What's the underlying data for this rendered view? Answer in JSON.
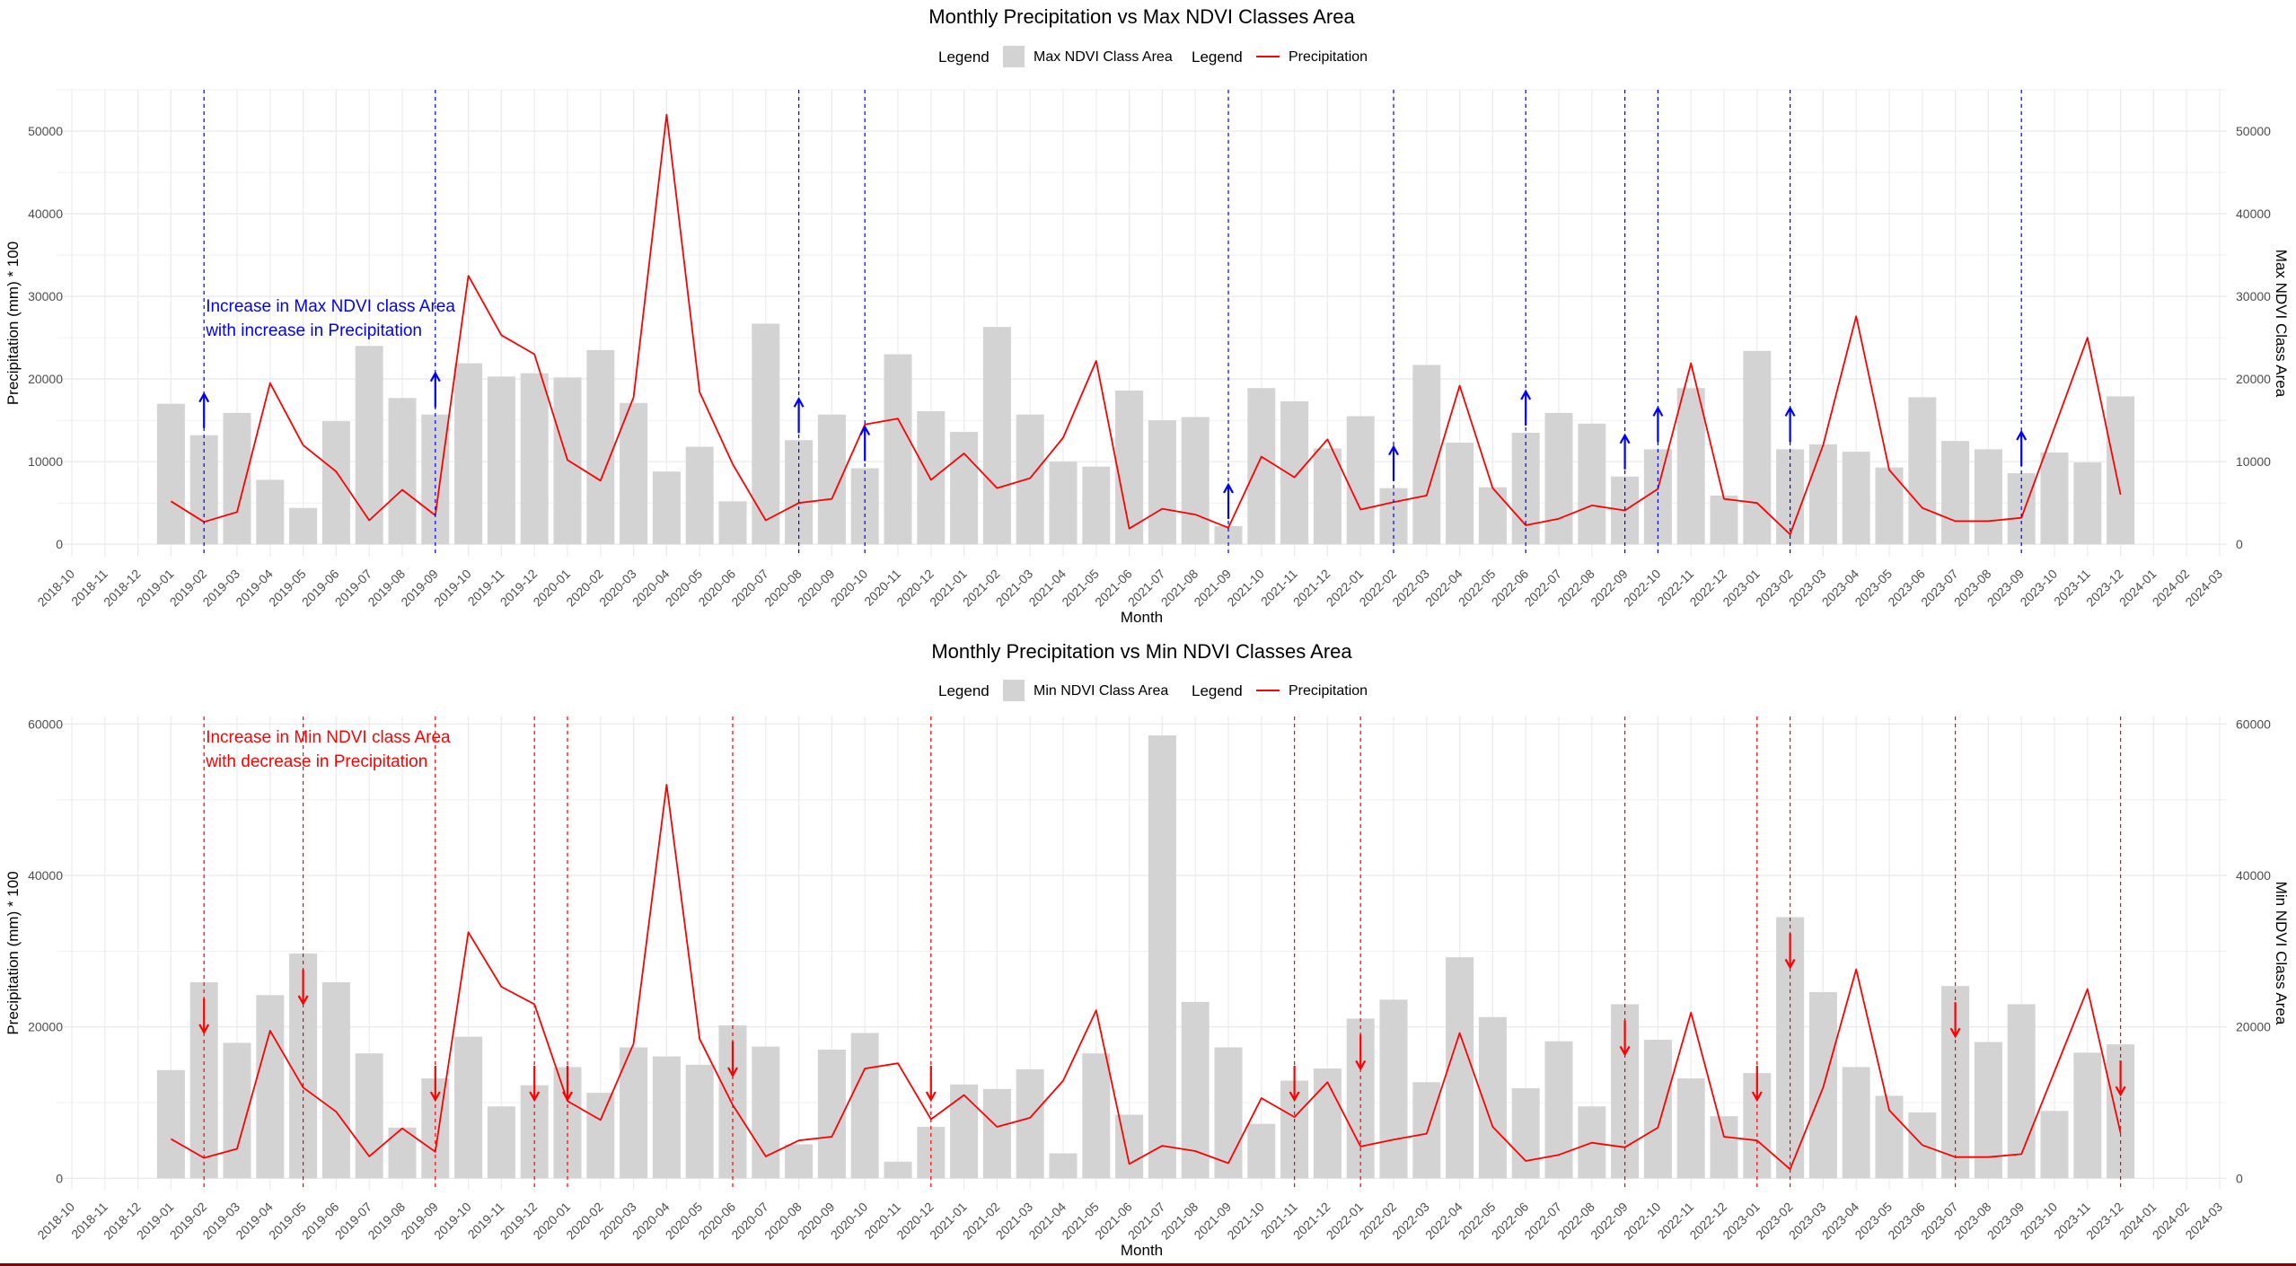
{
  "months": [
    "2018-10",
    "2018-11",
    "2018-12",
    "2019-01",
    "2019-02",
    "2019-03",
    "2019-04",
    "2019-05",
    "2019-06",
    "2019-07",
    "2019-08",
    "2019-09",
    "2019-10",
    "2019-11",
    "2019-12",
    "2020-01",
    "2020-02",
    "2020-03",
    "2020-04",
    "2020-05",
    "2020-06",
    "2020-07",
    "2020-08",
    "2020-09",
    "2020-10",
    "2020-11",
    "2020-12",
    "2021-01",
    "2021-02",
    "2021-03",
    "2021-04",
    "2021-05",
    "2021-06",
    "2021-07",
    "2021-08",
    "2021-09",
    "2021-10",
    "2021-11",
    "2021-12",
    "2022-01",
    "2022-02",
    "2022-03",
    "2022-04",
    "2022-05",
    "2022-06",
    "2022-07",
    "2022-08",
    "2022-09",
    "2022-10",
    "2022-11",
    "2022-12",
    "2023-01",
    "2023-02",
    "2023-03",
    "2023-04",
    "2023-05",
    "2023-06",
    "2023-07",
    "2023-08",
    "2023-09",
    "2023-10",
    "2023-11",
    "2023-12",
    "2024-01",
    "2024-02",
    "2024-03"
  ],
  "colors": {
    "bar": "#d3d3d3",
    "line": "#ff0000",
    "increase": "#0000ff",
    "decrease": "#ff0000",
    "grid": "#ebebeb"
  },
  "chart_data": [
    {
      "type": "bar+line",
      "title": "Monthly Precipitation vs Max NDVI Classes Area",
      "legend_title": "Legend",
      "bar_legend": "Max NDVI Class Area",
      "line_legend": "Precipitation",
      "xlabel": "Month",
      "ylabel_left": "Precipitation (mm) * 100",
      "ylabel_right": "Max NDVI Class Area",
      "ylim": [
        -1500,
        55000
      ],
      "yticks": [
        0,
        10000,
        20000,
        30000,
        40000,
        50000
      ],
      "ytick_labels": [
        "0",
        "10000",
        "20000",
        "30000",
        "40000",
        "50000"
      ],
      "bar_categories": [
        "2019-01",
        "2019-02",
        "2019-03",
        "2019-04",
        "2019-05",
        "2019-06",
        "2019-07",
        "2019-08",
        "2019-09",
        "2019-10",
        "2019-11",
        "2019-12",
        "2020-01",
        "2020-02",
        "2020-03",
        "2020-04",
        "2020-05",
        "2020-06",
        "2020-07",
        "2020-08",
        "2020-09",
        "2020-10",
        "2020-11",
        "2020-12",
        "2021-01",
        "2021-02",
        "2021-03",
        "2021-04",
        "2021-05",
        "2021-06",
        "2021-07",
        "2021-08",
        "2021-09",
        "2021-10",
        "2021-11",
        "2021-12",
        "2022-01",
        "2022-02",
        "2022-03",
        "2022-04",
        "2022-05",
        "2022-06",
        "2022-07",
        "2022-08",
        "2022-09",
        "2022-10",
        "2022-11",
        "2022-12",
        "2023-01",
        "2023-02",
        "2023-03",
        "2023-04",
        "2023-05",
        "2023-06",
        "2023-07",
        "2023-08",
        "2023-09",
        "2023-10",
        "2023-11",
        "2023-12"
      ],
      "bar_values": [
        17000,
        13200,
        15900,
        7800,
        4400,
        14900,
        24000,
        17700,
        15700,
        21900,
        20300,
        20700,
        20200,
        23500,
        17100,
        8800,
        11800,
        5200,
        26700,
        12600,
        15700,
        9200,
        23000,
        16100,
        13600,
        26300,
        15700,
        10000,
        9400,
        18600,
        15000,
        15400,
        2200,
        18900,
        17300,
        11600,
        15500,
        6800,
        21700,
        12300,
        6900,
        13500,
        15900,
        14600,
        8200,
        11500,
        18900,
        5900,
        23400,
        11500,
        12100,
        11200,
        9300,
        17800,
        12500,
        11500,
        8600,
        11100,
        9900,
        17900
      ],
      "line_values": [
        5200,
        2700,
        3900,
        19500,
        12000,
        8800,
        2900,
        6600,
        3500,
        32500,
        25300,
        23000,
        10200,
        7700,
        17800,
        52000,
        18400,
        9700,
        2900,
        5000,
        5500,
        14500,
        15200,
        7800,
        11000,
        6800,
        8000,
        12900,
        22200,
        1900,
        4300,
        3600,
        2000,
        10600,
        8100,
        12700,
        4200,
        5100,
        5900,
        19200,
        6800,
        2300,
        3100,
        4700,
        4100,
        6700,
        21900,
        5500,
        5000,
        1200,
        12000,
        27600,
        9000,
        4400,
        2800,
        2800,
        3200,
        14100,
        25000,
        6000
      ],
      "event_months": [
        "2019-02",
        "2019-09",
        "2020-08",
        "2020-10",
        "2021-09",
        "2022-02",
        "2022-06",
        "2022-09",
        "2022-10",
        "2023-02",
        "2023-09"
      ],
      "annotation": [
        "Increase in Max NDVI class Area",
        "with increase in Precipitation"
      ],
      "arrow_direction": "up"
    },
    {
      "type": "bar+line",
      "title": "Monthly Precipitation vs Min NDVI Classes Area",
      "legend_title": "Legend",
      "bar_legend": "Min NDVI Class Area",
      "line_legend": "Precipitation",
      "xlabel": "Month",
      "ylabel_left": "Precipitation (mm) * 100",
      "ylabel_right": "Min NDVI Class Area",
      "ylim": [
        -1500,
        61000
      ],
      "yticks": [
        0,
        20000,
        40000,
        60000
      ],
      "ytick_labels": [
        "0",
        "20000",
        "40000",
        "60000"
      ],
      "bar_categories": [
        "2019-01",
        "2019-02",
        "2019-03",
        "2019-04",
        "2019-05",
        "2019-06",
        "2019-07",
        "2019-08",
        "2019-09",
        "2019-10",
        "2019-11",
        "2019-12",
        "2020-01",
        "2020-02",
        "2020-03",
        "2020-04",
        "2020-05",
        "2020-06",
        "2020-07",
        "2020-08",
        "2020-09",
        "2020-10",
        "2020-11",
        "2020-12",
        "2021-01",
        "2021-02",
        "2021-03",
        "2021-04",
        "2021-05",
        "2021-06",
        "2021-07",
        "2021-08",
        "2021-09",
        "2021-10",
        "2021-11",
        "2021-12",
        "2022-01",
        "2022-02",
        "2022-03",
        "2022-04",
        "2022-05",
        "2022-06",
        "2022-07",
        "2022-08",
        "2022-09",
        "2022-10",
        "2022-11",
        "2022-12",
        "2023-01",
        "2023-02",
        "2023-03",
        "2023-04",
        "2023-05",
        "2023-06",
        "2023-07",
        "2023-08",
        "2023-09",
        "2023-10",
        "2023-11",
        "2023-12"
      ],
      "bar_values": [
        14300,
        25900,
        17900,
        24200,
        29700,
        25900,
        16500,
        6700,
        13200,
        18700,
        9500,
        12300,
        14700,
        11300,
        17300,
        16100,
        15000,
        20200,
        17400,
        4500,
        17000,
        19200,
        2200,
        6800,
        12400,
        11800,
        14400,
        3300,
        16500,
        8400,
        58500,
        23300,
        17300,
        7200,
        12900,
        14500,
        21100,
        23600,
        12700,
        29200,
        21300,
        11900,
        18100,
        9500,
        23000,
        18300,
        13200,
        8200,
        13900,
        34500,
        24600,
        14700,
        10900,
        8700,
        25400,
        18000,
        23000,
        8900,
        16600,
        17700
      ],
      "line_values": [
        5200,
        2700,
        3900,
        19500,
        12000,
        8800,
        2900,
        6600,
        3500,
        32500,
        25300,
        23000,
        10200,
        7700,
        17800,
        52000,
        18400,
        9700,
        2900,
        5000,
        5500,
        14500,
        15200,
        7800,
        11000,
        6800,
        8000,
        12900,
        22200,
        1900,
        4300,
        3600,
        2000,
        10600,
        8100,
        12700,
        4200,
        5100,
        5900,
        19200,
        6800,
        2300,
        3100,
        4700,
        4100,
        6700,
        21900,
        5500,
        5000,
        1200,
        12000,
        27600,
        9000,
        4400,
        2800,
        2800,
        3200,
        14100,
        25000,
        6000
      ],
      "event_months": [
        "2019-02",
        "2019-05",
        "2019-09",
        "2019-12",
        "2020-01",
        "2020-06",
        "2020-12",
        "2021-11",
        "2022-01",
        "2022-09",
        "2023-01",
        "2023-02",
        "2023-07",
        "2023-12"
      ],
      "annotation": [
        "Increase in Min NDVI class Area",
        "with decrease in Precipitation"
      ],
      "arrow_direction": "down"
    }
  ]
}
